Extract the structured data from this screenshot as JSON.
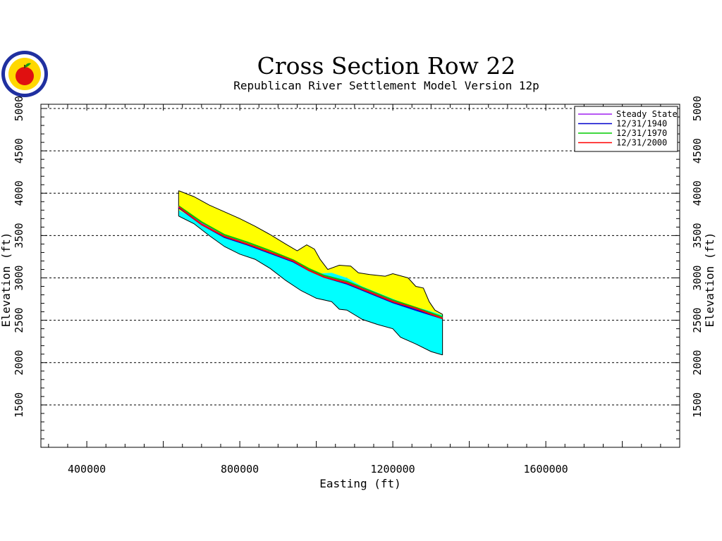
{
  "chart_data": {
    "type": "area",
    "title": "Cross Section Row 22",
    "subtitle": "Republican River Settlement Model Version 12p",
    "xlabel": "Easting (ft)",
    "ylabel": "Elevation (ft)",
    "xlim": [
      280000,
      1950000
    ],
    "ylim": [
      1000,
      5050
    ],
    "x_ticks": [
      400000,
      800000,
      1200000,
      1600000
    ],
    "x_tick_labels": [
      "400000",
      "800000",
      "1200000",
      "1600000"
    ],
    "y_ticks": [
      1500,
      2000,
      2500,
      3000,
      3500,
      4000,
      4500,
      5000
    ],
    "y_tick_labels": [
      "1500",
      "2000",
      "2500",
      "3000",
      "3500",
      "4000",
      "4500",
      "5000"
    ],
    "grid": "horizontal-dashed",
    "legend_position": "top-right",
    "layers": {
      "top": [
        {
          "x": 640000,
          "y": 4030
        },
        {
          "x": 680000,
          "y": 3960
        },
        {
          "x": 720000,
          "y": 3860
        },
        {
          "x": 760000,
          "y": 3780
        },
        {
          "x": 800000,
          "y": 3700
        },
        {
          "x": 840000,
          "y": 3610
        },
        {
          "x": 880000,
          "y": 3510
        },
        {
          "x": 920000,
          "y": 3400
        },
        {
          "x": 950000,
          "y": 3320
        },
        {
          "x": 975000,
          "y": 3390
        },
        {
          "x": 995000,
          "y": 3340
        },
        {
          "x": 1010000,
          "y": 3220
        },
        {
          "x": 1030000,
          "y": 3100
        },
        {
          "x": 1060000,
          "y": 3150
        },
        {
          "x": 1090000,
          "y": 3140
        },
        {
          "x": 1110000,
          "y": 3060
        },
        {
          "x": 1140000,
          "y": 3040
        },
        {
          "x": 1180000,
          "y": 3020
        },
        {
          "x": 1200000,
          "y": 3050
        },
        {
          "x": 1240000,
          "y": 3000
        },
        {
          "x": 1260000,
          "y": 2900
        },
        {
          "x": 1280000,
          "y": 2880
        },
        {
          "x": 1295000,
          "y": 2720
        },
        {
          "x": 1310000,
          "y": 2620
        },
        {
          "x": 1330000,
          "y": 2570
        }
      ],
      "water_table": [
        {
          "x": 640000,
          "y": 3800
        },
        {
          "x": 680000,
          "y": 3700
        },
        {
          "x": 740000,
          "y": 3540
        },
        {
          "x": 800000,
          "y": 3440
        },
        {
          "x": 860000,
          "y": 3330
        },
        {
          "x": 920000,
          "y": 3220
        },
        {
          "x": 960000,
          "y": 3150
        },
        {
          "x": 1000000,
          "y": 3050
        },
        {
          "x": 1040000,
          "y": 3060
        },
        {
          "x": 1080000,
          "y": 3000
        },
        {
          "x": 1120000,
          "y": 2900
        },
        {
          "x": 1180000,
          "y": 2790
        },
        {
          "x": 1240000,
          "y": 2680
        },
        {
          "x": 1290000,
          "y": 2620
        },
        {
          "x": 1330000,
          "y": 2560
        }
      ],
      "bottom": [
        {
          "x": 640000,
          "y": 3730
        },
        {
          "x": 680000,
          "y": 3640
        },
        {
          "x": 720000,
          "y": 3500
        },
        {
          "x": 760000,
          "y": 3370
        },
        {
          "x": 800000,
          "y": 3280
        },
        {
          "x": 840000,
          "y": 3220
        },
        {
          "x": 880000,
          "y": 3110
        },
        {
          "x": 920000,
          "y": 2970
        },
        {
          "x": 960000,
          "y": 2850
        },
        {
          "x": 1000000,
          "y": 2760
        },
        {
          "x": 1040000,
          "y": 2720
        },
        {
          "x": 1060000,
          "y": 2630
        },
        {
          "x": 1080000,
          "y": 2620
        },
        {
          "x": 1120000,
          "y": 2510
        },
        {
          "x": 1160000,
          "y": 2450
        },
        {
          "x": 1200000,
          "y": 2400
        },
        {
          "x": 1220000,
          "y": 2300
        },
        {
          "x": 1260000,
          "y": 2220
        },
        {
          "x": 1300000,
          "y": 2130
        },
        {
          "x": 1330000,
          "y": 2090
        }
      ]
    },
    "series": [
      {
        "name": "Steady State",
        "color": "#a020f0",
        "points": [
          {
            "x": 640000,
            "y": 3840
          },
          {
            "x": 700000,
            "y": 3640
          },
          {
            "x": 760000,
            "y": 3490
          },
          {
            "x": 820000,
            "y": 3400
          },
          {
            "x": 880000,
            "y": 3300
          },
          {
            "x": 940000,
            "y": 3200
          },
          {
            "x": 980000,
            "y": 3100
          },
          {
            "x": 1020000,
            "y": 3020
          },
          {
            "x": 1080000,
            "y": 2950
          },
          {
            "x": 1140000,
            "y": 2840
          },
          {
            "x": 1200000,
            "y": 2730
          },
          {
            "x": 1260000,
            "y": 2640
          },
          {
            "x": 1330000,
            "y": 2530
          }
        ]
      },
      {
        "name": "12/31/1940",
        "color": "#0000cc",
        "points": [
          {
            "x": 640000,
            "y": 3830
          },
          {
            "x": 700000,
            "y": 3630
          },
          {
            "x": 760000,
            "y": 3480
          },
          {
            "x": 820000,
            "y": 3390
          },
          {
            "x": 880000,
            "y": 3290
          },
          {
            "x": 940000,
            "y": 3190
          },
          {
            "x": 980000,
            "y": 3090
          },
          {
            "x": 1020000,
            "y": 3010
          },
          {
            "x": 1080000,
            "y": 2930
          },
          {
            "x": 1140000,
            "y": 2820
          },
          {
            "x": 1200000,
            "y": 2710
          },
          {
            "x": 1260000,
            "y": 2620
          },
          {
            "x": 1330000,
            "y": 2520
          }
        ]
      },
      {
        "name": "12/31/1970",
        "color": "#00cc00",
        "points": [
          {
            "x": 640000,
            "y": 3850
          },
          {
            "x": 700000,
            "y": 3660
          },
          {
            "x": 760000,
            "y": 3510
          },
          {
            "x": 820000,
            "y": 3420
          },
          {
            "x": 880000,
            "y": 3320
          },
          {
            "x": 940000,
            "y": 3210
          },
          {
            "x": 980000,
            "y": 3110
          },
          {
            "x": 1020000,
            "y": 3030
          },
          {
            "x": 1080000,
            "y": 2960
          },
          {
            "x": 1140000,
            "y": 2850
          },
          {
            "x": 1200000,
            "y": 2740
          },
          {
            "x": 1260000,
            "y": 2650
          },
          {
            "x": 1330000,
            "y": 2540
          }
        ]
      },
      {
        "name": "12/31/2000",
        "color": "#ff0000",
        "points": [
          {
            "x": 640000,
            "y": 3840
          },
          {
            "x": 700000,
            "y": 3630
          },
          {
            "x": 760000,
            "y": 3490
          },
          {
            "x": 820000,
            "y": 3400
          },
          {
            "x": 880000,
            "y": 3300
          },
          {
            "x": 940000,
            "y": 3200
          },
          {
            "x": 980000,
            "y": 3090
          },
          {
            "x": 1020000,
            "y": 3010
          },
          {
            "x": 1080000,
            "y": 2940
          },
          {
            "x": 1140000,
            "y": 2830
          },
          {
            "x": 1200000,
            "y": 2720
          },
          {
            "x": 1260000,
            "y": 2640
          },
          {
            "x": 1330000,
            "y": 2520
          }
        ]
      }
    ],
    "colors": {
      "unsaturated": "#ffff00",
      "saturated": "#00ffff",
      "grid": "#000000"
    }
  },
  "logo": {
    "icon": "apple-seal-icon"
  }
}
